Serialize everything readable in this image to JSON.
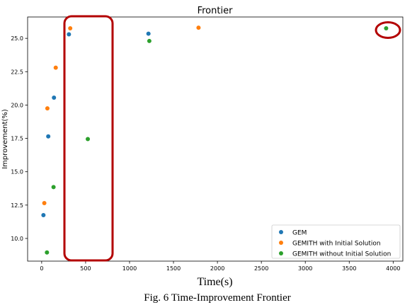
{
  "chart_data": {
    "type": "scatter",
    "title": "Frontier",
    "xlabel": "Time(s)",
    "ylabel": "Improvement(%)",
    "xlim": [
      -160,
      4110
    ],
    "ylim": [
      8.3,
      26.6
    ],
    "x_ticks": [
      0,
      500,
      1000,
      1500,
      2000,
      2500,
      3000,
      3500,
      4000
    ],
    "y_ticks": [
      10.0,
      12.5,
      15.0,
      17.5,
      20.0,
      22.5,
      25.0
    ],
    "x_tick_labels": [
      "0",
      "500",
      "1000",
      "1500",
      "2000",
      "2500",
      "3000",
      "3500",
      "4000"
    ],
    "y_tick_labels": [
      "10.0",
      "12.5",
      "15.0",
      "17.5",
      "20.0",
      "22.5",
      "25.0"
    ],
    "grid": false,
    "legend_position": "lower-right",
    "series": [
      {
        "name": "GEM",
        "color": "#1f77b4",
        "points": [
          [
            20,
            11.75
          ],
          [
            75,
            17.65
          ],
          [
            140,
            20.55
          ],
          [
            310,
            25.3
          ],
          [
            1215,
            25.35
          ]
        ]
      },
      {
        "name": "GEMITH with Initial Solution",
        "color": "#ff7f0e",
        "points": [
          [
            30,
            12.65
          ],
          [
            65,
            19.75
          ],
          [
            160,
            22.8
          ],
          [
            325,
            25.75
          ],
          [
            1785,
            25.8
          ]
        ]
      },
      {
        "name": "GEMITH without Initial Solution",
        "color": "#2ca02c",
        "points": [
          [
            60,
            8.95
          ],
          [
            135,
            13.85
          ],
          [
            525,
            17.45
          ],
          [
            1225,
            24.8
          ],
          [
            3920,
            25.75
          ]
        ]
      }
    ]
  },
  "caption": "Fig. 6 Time-Improvement Frontier",
  "highlight_color": "#b30000"
}
